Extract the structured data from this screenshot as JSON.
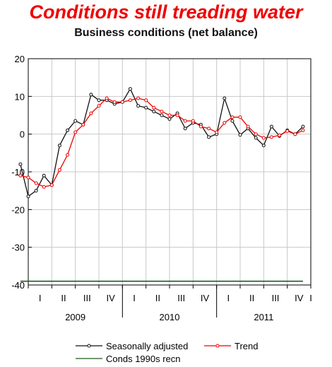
{
  "headline": "Conditions still treading water",
  "chart_data": {
    "type": "line",
    "title": "Business conditions (net balance)",
    "xlabel": "",
    "ylabel": "",
    "ylim": [
      -40,
      20
    ],
    "yticks": [
      20,
      10,
      0,
      -10,
      -20,
      -30,
      -40
    ],
    "grid": true,
    "x_start": "2009-01",
    "x_end": "2012-01",
    "quarter_ticks": [
      "I",
      "II",
      "III",
      "IV",
      "I",
      "II",
      "III",
      "IV",
      "I",
      "II",
      "III",
      "IV",
      "I"
    ],
    "year_labels": [
      "2009",
      "2010",
      "2011"
    ],
    "series": [
      {
        "name": "Seasonally adjusted",
        "color": "#111111",
        "x": [
          "2008-12",
          "2009-01",
          "2009-02",
          "2009-03",
          "2009-04",
          "2009-05",
          "2009-06",
          "2009-07",
          "2009-08",
          "2009-09",
          "2009-10",
          "2009-11",
          "2009-12",
          "2010-01",
          "2010-02",
          "2010-03",
          "2010-04",
          "2010-05",
          "2010-06",
          "2010-07",
          "2010-08",
          "2010-09",
          "2010-10",
          "2010-11",
          "2010-12",
          "2011-01",
          "2011-02",
          "2011-03",
          "2011-04",
          "2011-05",
          "2011-06",
          "2011-07",
          "2011-08",
          "2011-09",
          "2011-10",
          "2011-11",
          "2011-12"
        ],
        "values": [
          -8,
          -16.5,
          -15,
          -11,
          -13.5,
          -3,
          1,
          3.5,
          2.5,
          10.5,
          9,
          9,
          8,
          8.5,
          12,
          7.5,
          7,
          6,
          5,
          4,
          5.5,
          1.5,
          3,
          2.5,
          -0.8,
          0,
          9.5,
          3.5,
          -0.2,
          1.5,
          -1,
          -3,
          2,
          -0.5,
          1,
          0,
          2
        ]
      },
      {
        "name": "Trend",
        "color": "#ee0000",
        "x": [
          "2008-12",
          "2009-01",
          "2009-02",
          "2009-03",
          "2009-04",
          "2009-05",
          "2009-06",
          "2009-07",
          "2009-08",
          "2009-09",
          "2009-10",
          "2009-11",
          "2009-12",
          "2010-01",
          "2010-02",
          "2010-03",
          "2010-04",
          "2010-05",
          "2010-06",
          "2010-07",
          "2010-08",
          "2010-09",
          "2010-10",
          "2010-11",
          "2010-12",
          "2011-01",
          "2011-02",
          "2011-03",
          "2011-04",
          "2011-05",
          "2011-06",
          "2011-07",
          "2011-08",
          "2011-09",
          "2011-10",
          "2011-11",
          "2011-12"
        ],
        "values": [
          -11,
          -11.5,
          -13,
          -14,
          -13.5,
          -9.5,
          -5.5,
          0.5,
          2.5,
          5.5,
          7.5,
          9.5,
          8.5,
          8.5,
          9,
          9.5,
          9,
          7,
          6,
          5,
          5,
          3.5,
          3.5,
          2,
          1.5,
          0.5,
          3,
          4.5,
          4.5,
          2,
          0,
          -1,
          -0.8,
          -0.3,
          0.8,
          0,
          1
        ]
      },
      {
        "name": "Conds 1990s recn",
        "color": "#1a5c1a",
        "x": [
          "2008-12",
          "2011-12"
        ],
        "values": [
          -39,
          -39
        ]
      }
    ]
  }
}
